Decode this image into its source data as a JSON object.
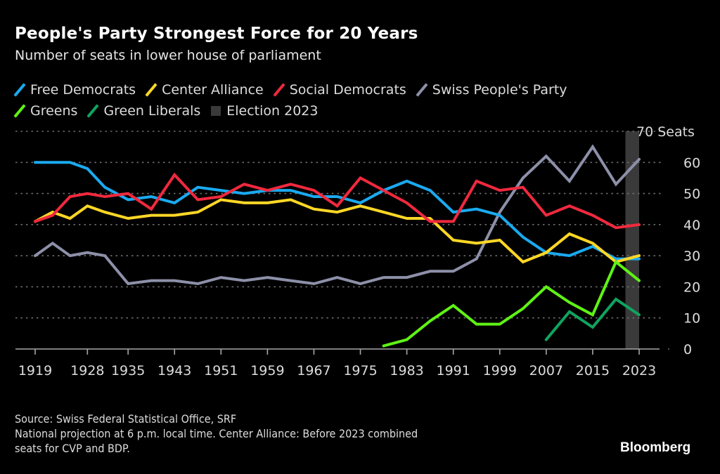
{
  "header": {
    "title": "People's Party Strongest Force for 20 Years",
    "subtitle": "Number of seats in lower house of parliament"
  },
  "legend": {
    "row1": [
      {
        "label": "Free Democrats",
        "color": "#1aaaf0"
      },
      {
        "label": "Center Alliance",
        "color": "#ffd726"
      },
      {
        "label": "Social Democrats",
        "color": "#f0293e"
      },
      {
        "label": "Swiss People's Party",
        "color": "#8d90a8"
      }
    ],
    "row2": [
      {
        "label": "Greens",
        "color": "#5ff214"
      },
      {
        "label": "Green Liberals",
        "color": "#0fa45f"
      }
    ],
    "highlight": {
      "label": "Election 2023",
      "color": "#3a3a3a"
    }
  },
  "chart_data": {
    "type": "line",
    "title": "People's Party Strongest Force for 20 Years",
    "subtitle": "Number of seats in lower house of parliament",
    "xlabel": "",
    "ylabel": "Seats",
    "ylim": [
      0,
      70
    ],
    "xlim": [
      1919,
      2023
    ],
    "yticks": [
      0,
      10,
      20,
      30,
      40,
      50,
      60,
      70
    ],
    "ytick_top_label": "70 Seats",
    "xticks": [
      1919,
      1928,
      1935,
      1943,
      1951,
      1959,
      1967,
      1975,
      1983,
      1991,
      1999,
      2007,
      2015,
      2023
    ],
    "grid": true,
    "legend_position": "top-left",
    "highlight_band": {
      "label": "Election 2023",
      "from": 2021,
      "to": 2023
    },
    "x": [
      1919,
      1922,
      1925,
      1928,
      1931,
      1935,
      1939,
      1943,
      1947,
      1951,
      1955,
      1959,
      1963,
      1967,
      1971,
      1975,
      1979,
      1983,
      1987,
      1991,
      1995,
      1999,
      2003,
      2007,
      2011,
      2015,
      2019,
      2023
    ],
    "series": [
      {
        "name": "Free Democrats",
        "color": "#1aaaf0",
        "values": [
          60,
          60,
          60,
          58,
          52,
          48,
          49,
          47,
          52,
          51,
          50,
          51,
          51,
          49,
          49,
          47,
          51,
          54,
          51,
          44,
          45,
          43,
          36,
          31,
          30,
          33,
          29,
          29
        ]
      },
      {
        "name": "Center Alliance",
        "color": "#ffd726",
        "values": [
          41,
          44,
          42,
          46,
          44,
          42,
          43,
          43,
          44,
          48,
          47,
          47,
          48,
          45,
          44,
          46,
          44,
          42,
          42,
          35,
          34,
          35,
          28,
          31,
          37,
          34,
          28,
          30
        ]
      },
      {
        "name": "Social Democrats",
        "color": "#f0293e",
        "values": [
          41,
          43,
          49,
          50,
          49,
          50,
          45,
          56,
          48,
          49,
          53,
          51,
          53,
          51,
          46,
          55,
          51,
          47,
          41,
          41,
          54,
          51,
          52,
          43,
          46,
          43,
          39,
          40
        ]
      },
      {
        "name": "Swiss People's Party",
        "color": "#8d90a8",
        "values": [
          30,
          34,
          30,
          31,
          30,
          21,
          22,
          22,
          21,
          23,
          22,
          23,
          22,
          21,
          23,
          21,
          23,
          23,
          25,
          25,
          29,
          44,
          55,
          62,
          54,
          65,
          53,
          61
        ]
      },
      {
        "name": "Greens",
        "color": "#5ff214",
        "values": [
          null,
          null,
          null,
          null,
          null,
          null,
          null,
          null,
          null,
          null,
          null,
          null,
          null,
          null,
          null,
          null,
          1,
          3,
          9,
          14,
          8,
          8,
          13,
          20,
          15,
          11,
          28,
          22
        ]
      },
      {
        "name": "Green Liberals",
        "color": "#0fa45f",
        "values": [
          null,
          null,
          null,
          null,
          null,
          null,
          null,
          null,
          null,
          null,
          null,
          null,
          null,
          null,
          null,
          null,
          null,
          null,
          null,
          null,
          null,
          null,
          null,
          3,
          12,
          7,
          16,
          11
        ]
      }
    ]
  },
  "footer": {
    "source": "Source: Swiss Federal Statistical Office, SRF",
    "note1": "National projection at 6 p.m. local time. Center Alliance: Before 2023 combined",
    "note2": "seats for CVP and BDP.",
    "brand": "Bloomberg"
  }
}
